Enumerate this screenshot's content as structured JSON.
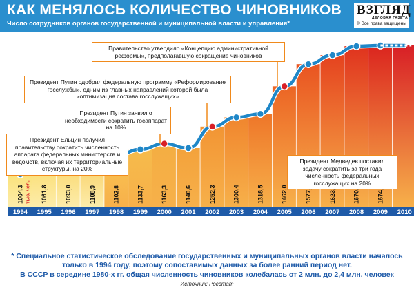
{
  "header": {
    "title": "КАК МЕНЯЛОСЬ КОЛИЧЕСТВО ЧИНОВНИКОВ",
    "subtitle": "Число сотрудников органов государственной и муниципальной власти и управления*"
  },
  "logo": {
    "name": "ВЗГЛЯД",
    "tagline": "ДЕЛОВАЯ ГАЗЕТА",
    "copyright": "© Все права защищены"
  },
  "colors": {
    "header": "#2a8fce",
    "line": "#1f87c8",
    "highlight_marker": "#d81f26",
    "callout_border": "#f08a1c",
    "year_band": "#1e5aa8",
    "footnote": "#1e5aa8"
  },
  "chart_data": {
    "type": "bar",
    "categories": [
      "1994",
      "1995",
      "1996",
      "1997",
      "1998",
      "1999",
      "2000",
      "2001",
      "2002",
      "2003",
      "2004",
      "2005",
      "2006",
      "2007",
      "2008",
      "2009",
      "2010"
    ],
    "values": [
      1004.3,
      1061.8,
      1093.0,
      1108.9,
      1102.8,
      1133.7,
      1163.3,
      1140.6,
      1252.3,
      1300.4,
      1318.5,
      1462.0,
      1577.2,
      1623.9,
      1670.8,
      1674.7,
      null
    ],
    "value_labels": [
      "1004,3",
      "1061,8",
      "1093,0",
      "1108,9",
      "1102,8",
      "1133,7",
      "1163,3",
      "1140,6",
      "1252,3",
      "1300,4",
      "1318,5",
      "1462,0",
      "1577,2",
      "1623,9",
      "1670,8",
      "1674,7",
      ""
    ],
    "unit_label": "тыс. чел.",
    "highlighted_years": [
      "1997",
      "2000",
      "2002",
      "2005"
    ],
    "overlay": "line",
    "grid": false,
    "legend": "none",
    "annotations": [
      {
        "year": "1994",
        "text": "Президент Ельцин получил правительству сократить численность аппарата федеральных министерств и ведомств, включая их территориальные структуры, на 20%"
      },
      {
        "year": "2000",
        "text": "Президент Путин заявил о необходимости сократить госаппарат на 10%"
      },
      {
        "year": "2002",
        "text": "Президент Путин одобрил федеральную программу «Реформирование госслужбы», одним из главных направлений которой была «оптимизация состава госслужащих»"
      },
      {
        "year": "2005",
        "text": "Правительство утвердило «Концепцию административной реформы», предполагавшую сокращение чиновников"
      },
      {
        "year": "2010",
        "text": "Президент Медведев поставил задачу сократить за три года численность федеральных госслужащих на 20%"
      }
    ]
  },
  "footnotes": [
    "* Специальное статистическое обследование государственных и муниципальных органов власти началось только в 1994 году, поэтому сопоставимых данных за более ранний период нет.",
    "В СССР в середине 1980-х гг. общая численность чиновников колебалась от 2 млн. до 2,4 млн. человек"
  ],
  "source": "Источник: Росстат"
}
